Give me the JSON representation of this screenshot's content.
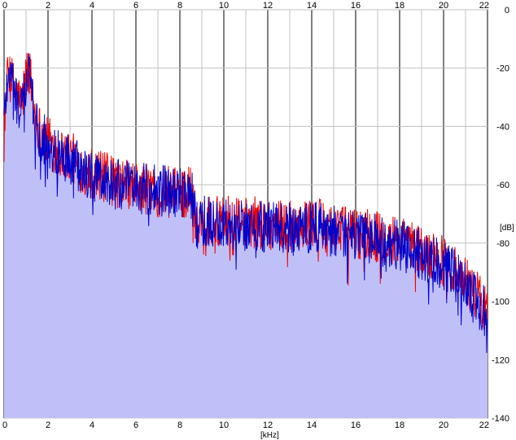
{
  "chart_data": {
    "type": "area",
    "title": "",
    "xlabel": "[kHz]",
    "ylabel": "[dB]",
    "xlim": [
      0,
      22
    ],
    "ylim": [
      -140,
      0
    ],
    "x_ticks": [
      0,
      2,
      4,
      6,
      8,
      10,
      12,
      14,
      16,
      18,
      20,
      22
    ],
    "y_ticks": [
      0,
      -20,
      -40,
      -60,
      -80,
      -100,
      -120,
      -140
    ],
    "x_tick_labels": [
      "0",
      "2",
      "4",
      "6",
      "8",
      "10",
      "12",
      "14",
      "16",
      "18",
      "20",
      "22"
    ],
    "y_tick_labels": [
      "0",
      "-20",
      "-40",
      "-60",
      "-80",
      "-100",
      "-120",
      "-140"
    ],
    "grid": true,
    "colors": {
      "fill": "#c0c0f8",
      "grid_major": "#808080",
      "grid_minor": "#c0c0c0",
      "series_red": "#ee0000",
      "series_blue": "#0000cc"
    },
    "series": [
      {
        "color": "red",
        "x": [
          0,
          0.2,
          0.5,
          0.8,
          1.1,
          1.5,
          2.0,
          2.5,
          3.0,
          3.5,
          4.0,
          5.0,
          6.0,
          7.0,
          8.0,
          8.5,
          8.7,
          9.5,
          10.5,
          11.5,
          12.5,
          13.5,
          14.5,
          15.5,
          16.5,
          17.5,
          18.5,
          19.5,
          20.0,
          20.5,
          21.0,
          21.5,
          22.0
        ],
        "y": [
          -38,
          -21,
          -28,
          -33,
          -18,
          -40,
          -45,
          -49,
          -50,
          -54,
          -56,
          -59,
          -61,
          -62,
          -63,
          -62,
          -71,
          -72,
          -73,
          -73,
          -74,
          -73,
          -74,
          -76,
          -77,
          -79,
          -81,
          -85,
          -86,
          -89,
          -93,
          -98,
          -103
        ]
      },
      {
        "color": "blue",
        "x": [
          0,
          0.2,
          0.5,
          0.8,
          1.1,
          1.5,
          2.0,
          2.5,
          3.0,
          3.5,
          4.0,
          5.0,
          6.0,
          7.0,
          8.0,
          8.5,
          8.7,
          9.5,
          10.5,
          11.5,
          12.5,
          13.5,
          14.5,
          15.5,
          16.5,
          17.5,
          18.5,
          19.5,
          20.0,
          20.5,
          21.0,
          21.5,
          22.0
        ],
        "y": [
          -37,
          -19,
          -30,
          -35,
          -20,
          -41,
          -46,
          -50,
          -51,
          -55,
          -57,
          -60,
          -61,
          -62,
          -63,
          -61,
          -72,
          -73,
          -74,
          -74,
          -75,
          -74,
          -75,
          -77,
          -78,
          -80,
          -82,
          -86,
          -88,
          -91,
          -95,
          -100,
          -104
        ]
      }
    ]
  }
}
